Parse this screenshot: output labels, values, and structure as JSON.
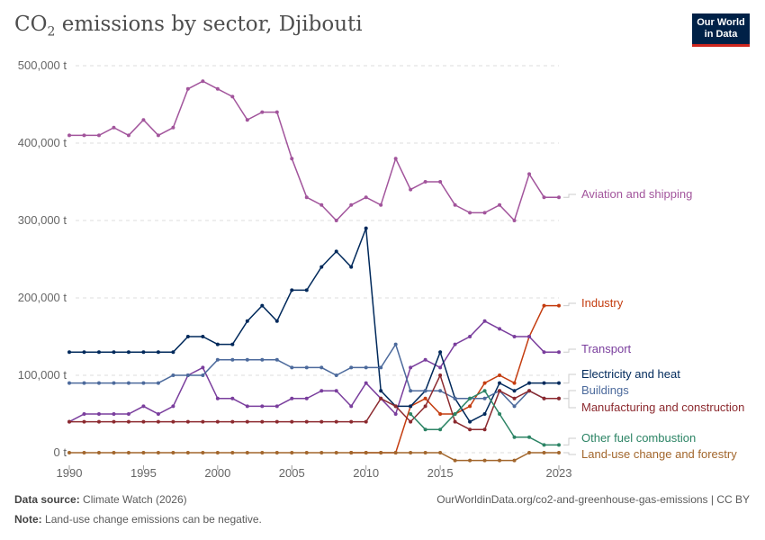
{
  "title_main": "CO",
  "title_sub": "2",
  "title_rest": " emissions by sector, Djibouti",
  "logo": "Our World in Data",
  "footer": {
    "source_label": "Data source:",
    "source": "Climate Watch (2026)",
    "url": "OurWorldinData.org/co2-and-greenhouse-gas-emissions | CC BY",
    "note_label": "Note:",
    "note": "Land-use change emissions can be negative."
  },
  "chart_data": {
    "type": "line",
    "title": "CO2 emissions by sector, Djibouti",
    "x_ticks": [
      "1990",
      "1995",
      "2000",
      "2005",
      "2010",
      "2015",
      "2023"
    ],
    "y_ticks": [
      "0 t",
      "100,000 t",
      "200,000 t",
      "300,000 t",
      "400,000 t",
      "500,000 t"
    ],
    "ylim": [
      -10000,
      500000
    ],
    "xlim": [
      1990,
      2023
    ],
    "grid": true,
    "series": [
      {
        "name": "Aviation and shipping",
        "color": "#a2559c",
        "start": 1990,
        "values": [
          410000,
          410000,
          410000,
          420000,
          410000,
          430000,
          410000,
          420000,
          470000,
          480000,
          470000,
          460000,
          430000,
          440000,
          440000,
          380000,
          330000,
          320000,
          300000,
          320000,
          330000,
          320000,
          380000,
          340000,
          350000,
          350000,
          320000,
          310000,
          310000,
          320000,
          300000,
          360000,
          330000,
          330000
        ]
      },
      {
        "name": "Industry",
        "color": "#c43c0f",
        "start": 2009,
        "values": [
          0,
          0,
          0,
          0,
          60000,
          70000,
          50000,
          50000,
          60000,
          90000,
          100000,
          90000,
          150000,
          190000,
          190000
        ]
      },
      {
        "name": "Transport",
        "color": "#7a3e9d",
        "start": 1990,
        "values": [
          40000,
          50000,
          50000,
          50000,
          50000,
          60000,
          50000,
          60000,
          100000,
          110000,
          70000,
          70000,
          60000,
          60000,
          60000,
          70000,
          70000,
          80000,
          80000,
          60000,
          90000,
          70000,
          50000,
          110000,
          120000,
          110000,
          140000,
          150000,
          170000,
          160000,
          150000,
          150000,
          130000,
          130000
        ]
      },
      {
        "name": "Electricity and heat",
        "color": "#00295b",
        "start": 1990,
        "values": [
          130000,
          130000,
          130000,
          130000,
          130000,
          130000,
          130000,
          130000,
          150000,
          150000,
          140000,
          140000,
          170000,
          190000,
          170000,
          210000,
          210000,
          240000,
          260000,
          240000,
          290000,
          80000,
          60000,
          60000,
          80000,
          130000,
          70000,
          40000,
          50000,
          90000,
          80000,
          90000,
          90000,
          90000
        ]
      },
      {
        "name": "Buildings",
        "color": "#4c6a9c",
        "start": 1990,
        "values": [
          90000,
          90000,
          90000,
          90000,
          90000,
          90000,
          90000,
          100000,
          100000,
          100000,
          120000,
          120000,
          120000,
          120000,
          120000,
          110000,
          110000,
          110000,
          100000,
          110000,
          110000,
          110000,
          140000,
          80000,
          80000,
          80000,
          70000,
          70000,
          70000,
          80000,
          60000,
          80000,
          70000,
          70000
        ]
      },
      {
        "name": "Manufacturing and construction",
        "color": "#8c2a2f",
        "start": 1990,
        "values": [
          40000,
          40000,
          40000,
          40000,
          40000,
          40000,
          40000,
          40000,
          40000,
          40000,
          40000,
          40000,
          40000,
          40000,
          40000,
          40000,
          40000,
          40000,
          40000,
          40000,
          40000,
          70000,
          60000,
          40000,
          60000,
          100000,
          40000,
          30000,
          30000,
          80000,
          70000,
          80000,
          70000,
          70000
        ]
      },
      {
        "name": "Other fuel combustion",
        "color": "#2c8465",
        "start": 2013,
        "values": [
          50000,
          30000,
          30000,
          50000,
          70000,
          80000,
          50000,
          20000,
          20000,
          10000,
          10000
        ]
      },
      {
        "name": "Land-use change and forestry",
        "color": "#a2662c",
        "start": 1990,
        "values": [
          0,
          0,
          0,
          0,
          0,
          0,
          0,
          0,
          0,
          0,
          0,
          0,
          0,
          0,
          0,
          0,
          0,
          0,
          0,
          0,
          0,
          0,
          0,
          0,
          0,
          0,
          -10000,
          -10000,
          -10000,
          -10000,
          -10000,
          0,
          0,
          0
        ]
      }
    ]
  }
}
